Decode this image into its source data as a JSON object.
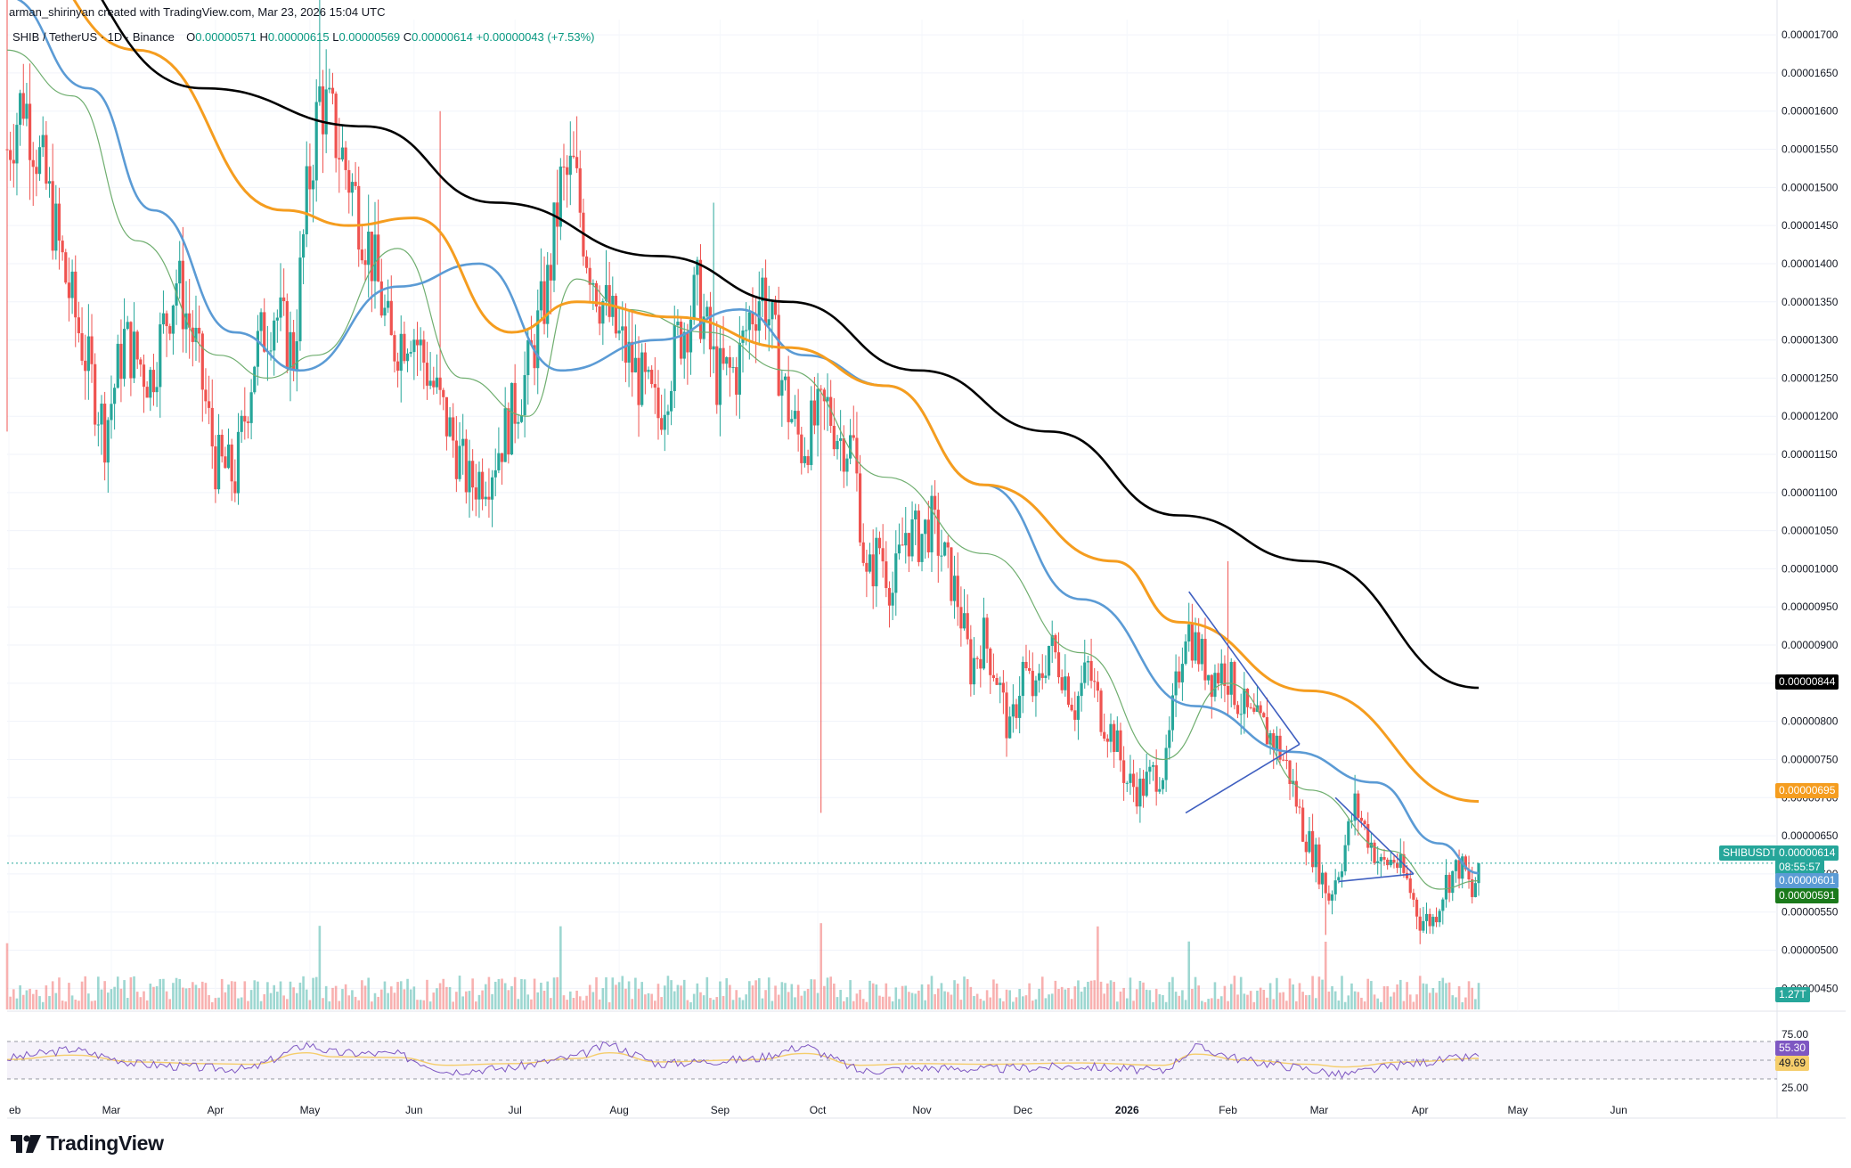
{
  "credit": "arman_shirinyan created with TradingView.com, Mar 23, 2026 15:04 UTC",
  "legend": {
    "symbol": "SHIB / TetherUS · 1D · Binance",
    "open_label": "O",
    "open": "0.00000571",
    "high_label": "H",
    "high": "0.00000615",
    "low_label": "L",
    "low": "0.00000569",
    "close_label": "C",
    "close": "0.00000614",
    "change": "+0.00000043 (+7.53%)"
  },
  "brand": "TradingView",
  "colors": {
    "up": "#26a69a",
    "down": "#ef5350",
    "ma_black": "#000000",
    "ma_orange": "#f59d1f",
    "ma_blue": "#5b9bd5",
    "ma_green": "#6fae6f",
    "rsi": "#7e57c2",
    "rsi_ma": "#f5cd6b",
    "trendline": "#3f5fc0"
  },
  "tags": {
    "black_ma": "0.00000844",
    "orange_ma": "0.00000695",
    "symbol": "SHIBUSDT",
    "last_price": "0.00000614",
    "countdown": "08:55:57",
    "blue_ma": "0.00000601",
    "green_ma": "0.00000591",
    "volume": "1.27T",
    "rsi": "55.30",
    "rsi_ma": "49.69"
  },
  "chart_data": {
    "type": "candlestick",
    "title": "SHIB / TetherUS · 1D · Binance",
    "xlabel": "",
    "ylabel": "",
    "ylim": [
      4.2e-06,
      1.72e-05
    ],
    "y_ticks": [
      "0.00001700",
      "0.00001650",
      "0.00001600",
      "0.00001550",
      "0.00001500",
      "0.00001450",
      "0.00001400",
      "0.00001350",
      "0.00001300",
      "0.00001250",
      "0.00001200",
      "0.00001150",
      "0.00001100",
      "0.00001050",
      "0.00001000",
      "0.00000950",
      "0.00000900",
      "0.00000850",
      "0.00000800",
      "0.00000750",
      "0.00000700",
      "0.00000650",
      "0.00000600",
      "0.00000550",
      "0.00000500",
      "0.00000450"
    ],
    "x_ticks": [
      "eb",
      "Mar",
      "Apr",
      "May",
      "Jun",
      "Jul",
      "Aug",
      "Sep",
      "Oct",
      "Nov",
      "Dec",
      "2026",
      "Feb",
      "Mar",
      "Apr",
      "May",
      "Jun"
    ],
    "rsi_ticks": [
      "75.00",
      "25.00"
    ],
    "grid": true,
    "last_close": 6.14e-06,
    "price_path": [
      [
        0,
        1.55e-05
      ],
      [
        5,
        1.62e-05
      ],
      [
        12,
        1.5e-05
      ],
      [
        18,
        1.38e-05
      ],
      [
        24,
        1.28e-05
      ],
      [
        30,
        1.18e-05
      ],
      [
        36,
        1.3e-05
      ],
      [
        44,
        1.25e-05
      ],
      [
        52,
        1.38e-05
      ],
      [
        58,
        1.29e-05
      ],
      [
        64,
        1.14e-05
      ],
      [
        70,
        1.12e-05
      ],
      [
        76,
        1.28e-05
      ],
      [
        82,
        1.34e-05
      ],
      [
        88,
        1.28e-05
      ],
      [
        92,
        1.48e-05
      ],
      [
        96,
        1.62e-05
      ],
      [
        100,
        1.58e-05
      ],
      [
        106,
        1.5e-05
      ],
      [
        112,
        1.41e-05
      ],
      [
        118,
        1.29e-05
      ],
      [
        124,
        1.32e-05
      ],
      [
        130,
        1.25e-05
      ],
      [
        136,
        1.18e-05
      ],
      [
        142,
        1.11e-05
      ],
      [
        148,
        1.13e-05
      ],
      [
        154,
        1.19e-05
      ],
      [
        160,
        1.26e-05
      ],
      [
        166,
        1.37e-05
      ],
      [
        170,
        1.5e-05
      ],
      [
        174,
        1.52e-05
      ],
      [
        178,
        1.42e-05
      ],
      [
        182,
        1.36e-05
      ],
      [
        188,
        1.3e-05
      ],
      [
        194,
        1.25e-05
      ],
      [
        200,
        1.2e-05
      ],
      [
        206,
        1.3e-05
      ],
      [
        212,
        1.36e-05
      ],
      [
        218,
        1.25e-05
      ],
      [
        224,
        1.26e-05
      ],
      [
        228,
        1.33e-05
      ],
      [
        232,
        1.37e-05
      ],
      [
        236,
        1.29e-05
      ],
      [
        240,
        1.21e-05
      ],
      [
        244,
        1.16e-05
      ],
      [
        248,
        1.19e-05
      ],
      [
        252,
        1.21e-05
      ],
      [
        256,
        1.17e-05
      ],
      [
        260,
        1.16e-05
      ],
      [
        264,
        9.8e-06
      ],
      [
        268,
        1.03e-05
      ],
      [
        272,
        9.7e-06
      ],
      [
        276,
        1.05e-05
      ],
      [
        280,
        1.04e-05
      ],
      [
        284,
        1.06e-05
      ],
      [
        288,
        1.01e-05
      ],
      [
        292,
        9.6e-06
      ],
      [
        296,
        8.7e-06
      ],
      [
        300,
        9.1e-06
      ],
      [
        304,
        8.6e-06
      ],
      [
        308,
        7.8e-06
      ],
      [
        312,
        8.7e-06
      ],
      [
        316,
        8.3e-06
      ],
      [
        320,
        9e-06
      ],
      [
        324,
        8.7e-06
      ],
      [
        328,
        8.2e-06
      ],
      [
        332,
        8.7e-06
      ],
      [
        336,
        8.1e-06
      ],
      [
        340,
        7.8e-06
      ],
      [
        344,
        7.2e-06
      ],
      [
        348,
        7.1e-06
      ],
      [
        352,
        7.3e-06
      ],
      [
        356,
        7.4e-06
      ],
      [
        358,
        8.1e-06
      ],
      [
        362,
        9.3e-06
      ],
      [
        366,
        8.9e-06
      ],
      [
        370,
        8.6e-06
      ],
      [
        374,
        8.7e-06
      ],
      [
        378,
        8.3e-06
      ],
      [
        382,
        8e-06
      ],
      [
        386,
        7.9e-06
      ],
      [
        390,
        7.7e-06
      ],
      [
        394,
        7.3e-06
      ],
      [
        398,
        6.6e-06
      ],
      [
        402,
        6.2e-06
      ],
      [
        406,
        5.7e-06
      ],
      [
        410,
        6.2e-06
      ],
      [
        414,
        6.9e-06
      ],
      [
        418,
        6.5e-06
      ],
      [
        422,
        6.1e-06
      ],
      [
        426,
        6.2e-06
      ],
      [
        430,
        5.9e-06
      ],
      [
        434,
        5.4e-06
      ],
      [
        438,
        5.4e-06
      ],
      [
        442,
        5.9e-06
      ],
      [
        446,
        6.1e-06
      ],
      [
        448,
        6e-06
      ],
      [
        450,
        5.7e-06
      ],
      [
        452,
        6.1e-06
      ]
    ],
    "ma_black_path": [
      [
        0,
        1.85e-05
      ],
      [
        60,
        1.63e-05
      ],
      [
        110,
        1.58e-05
      ],
      [
        150,
        1.48e-05
      ],
      [
        200,
        1.41e-05
      ],
      [
        240,
        1.35e-05
      ],
      [
        280,
        1.26e-05
      ],
      [
        320,
        1.18e-05
      ],
      [
        360,
        1.07e-05
      ],
      [
        400,
        1.01e-05
      ],
      [
        452,
        8.44e-06
      ]
    ],
    "ma_orange_path": [
      [
        0,
        1.82e-05
      ],
      [
        40,
        1.68e-05
      ],
      [
        85,
        1.47e-05
      ],
      [
        105,
        1.45e-05
      ],
      [
        125,
        1.46e-05
      ],
      [
        155,
        1.31e-05
      ],
      [
        175,
        1.35e-05
      ],
      [
        205,
        1.33e-05
      ],
      [
        240,
        1.29e-05
      ],
      [
        270,
        1.24e-05
      ],
      [
        300,
        1.11e-05
      ],
      [
        340,
        1.01e-05
      ],
      [
        360,
        9.3e-06
      ],
      [
        400,
        8.4e-06
      ],
      [
        452,
        6.95e-06
      ]
    ],
    "ma_blue_path": [
      [
        0,
        1.75e-05
      ],
      [
        25,
        1.63e-05
      ],
      [
        45,
        1.47e-05
      ],
      [
        70,
        1.31e-05
      ],
      [
        90,
        1.26e-05
      ],
      [
        120,
        1.37e-05
      ],
      [
        145,
        1.4e-05
      ],
      [
        170,
        1.26e-05
      ],
      [
        200,
        1.3e-05
      ],
      [
        225,
        1.34e-05
      ],
      [
        245,
        1.28e-05
      ],
      [
        270,
        1.24e-05
      ],
      [
        300,
        1.11e-05
      ],
      [
        330,
        9.6e-06
      ],
      [
        365,
        8.2e-06
      ],
      [
        395,
        7.6e-06
      ],
      [
        420,
        7.2e-06
      ],
      [
        440,
        6.4e-06
      ],
      [
        452,
        6.01e-06
      ]
    ],
    "ma_green_path": [
      [
        0,
        1.68e-05
      ],
      [
        20,
        1.62e-05
      ],
      [
        40,
        1.43e-05
      ],
      [
        65,
        1.28e-05
      ],
      [
        80,
        1.25e-05
      ],
      [
        95,
        1.28e-05
      ],
      [
        120,
        1.42e-05
      ],
      [
        140,
        1.25e-05
      ],
      [
        160,
        1.2e-05
      ],
      [
        175,
        1.38e-05
      ],
      [
        190,
        1.34e-05
      ],
      [
        215,
        1.31e-05
      ],
      [
        240,
        1.26e-05
      ],
      [
        270,
        1.12e-05
      ],
      [
        300,
        1.02e-05
      ],
      [
        330,
        8.9e-06
      ],
      [
        355,
        7.5e-06
      ],
      [
        375,
        8.5e-06
      ],
      [
        400,
        7.1e-06
      ],
      [
        425,
        6.3e-06
      ],
      [
        440,
        5.8e-06
      ],
      [
        452,
        5.91e-06
      ]
    ],
    "rsi_path": [
      [
        0,
        52
      ],
      [
        20,
        65
      ],
      [
        40,
        45
      ],
      [
        60,
        40
      ],
      [
        75,
        38
      ],
      [
        92,
        72
      ],
      [
        100,
        60
      ],
      [
        120,
        58
      ],
      [
        135,
        35
      ],
      [
        155,
        40
      ],
      [
        175,
        55
      ],
      [
        185,
        72
      ],
      [
        200,
        45
      ],
      [
        230,
        52
      ],
      [
        245,
        70
      ],
      [
        262,
        35
      ],
      [
        280,
        40
      ],
      [
        300,
        38
      ],
      [
        330,
        42
      ],
      [
        355,
        35
      ],
      [
        365,
        68
      ],
      [
        380,
        50
      ],
      [
        400,
        38
      ],
      [
        410,
        30
      ],
      [
        430,
        45
      ],
      [
        452,
        55.3
      ]
    ],
    "trendlines": [
      {
        "from": [
          363,
          9.7e-06
        ],
        "to": [
          397,
          7.7e-06
        ]
      },
      {
        "from": [
          362,
          6.8e-06
        ],
        "to": [
          397,
          7.7e-06
        ]
      },
      {
        "from": [
          408,
          7e-06
        ],
        "to": [
          432,
          6e-06
        ]
      },
      {
        "from": [
          409,
          5.9e-06
        ],
        "to": [
          432,
          6e-06
        ]
      }
    ]
  }
}
